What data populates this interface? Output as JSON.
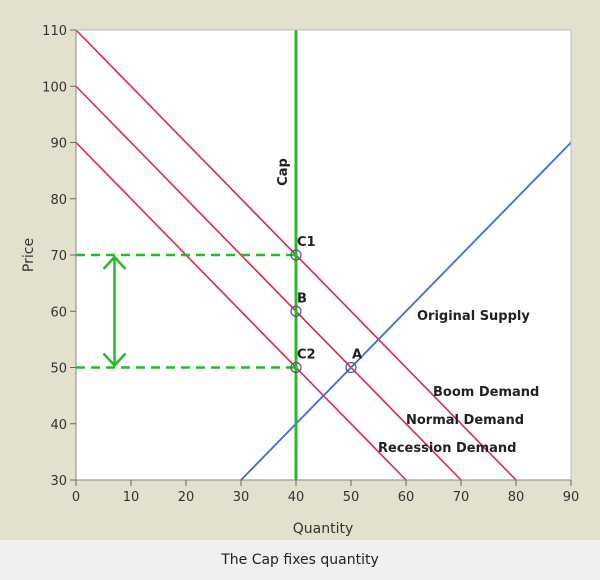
{
  "caption": "The Cap fixes quantity",
  "chart_data": {
    "type": "line",
    "xlabel": "Quantity",
    "ylabel": "Price",
    "xlim": [
      0,
      90
    ],
    "ylim": [
      30,
      110
    ],
    "xticks": [
      0,
      10,
      20,
      30,
      40,
      50,
      60,
      70,
      80,
      90
    ],
    "yticks": [
      30,
      40,
      50,
      60,
      70,
      80,
      90,
      100,
      110
    ],
    "grid": false,
    "colors": {
      "demand": "#e0284f",
      "supply": "#3a6fd8",
      "cap": "#2ab82a",
      "background": "#e3e1cd",
      "plot_area": "#ffffff"
    },
    "series": [
      {
        "name": "Boom Demand",
        "x": [
          0,
          80
        ],
        "y": [
          110,
          30
        ]
      },
      {
        "name": "Normal Demand",
        "x": [
          0,
          70
        ],
        "y": [
          100,
          30
        ]
      },
      {
        "name": "Recession Demand",
        "x": [
          0,
          60
        ],
        "y": [
          90,
          30
        ]
      },
      {
        "name": "Original Supply",
        "x": [
          30,
          90
        ],
        "y": [
          30,
          90
        ]
      }
    ],
    "cap": {
      "label": "Cap",
      "x": 40
    },
    "points": [
      {
        "label": "C1",
        "x": 40,
        "y": 70
      },
      {
        "label": "B",
        "x": 40,
        "y": 60
      },
      {
        "label": "C2",
        "x": 40,
        "y": 50
      },
      {
        "label": "A",
        "x": 50,
        "y": 50
      }
    ],
    "dashed_levels": [
      70,
      50
    ],
    "range_arrow": {
      "x": 7,
      "from": 50,
      "to": 70
    }
  }
}
